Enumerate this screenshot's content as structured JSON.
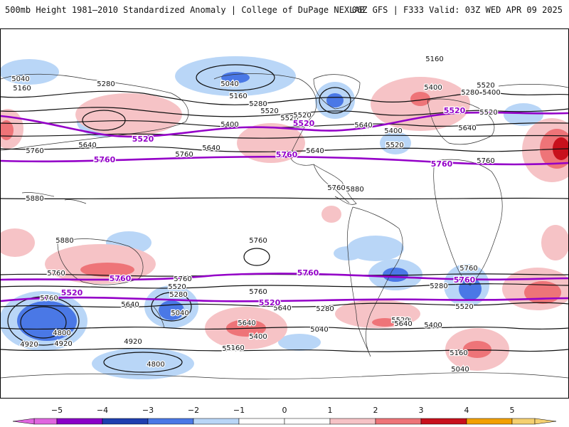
{
  "header": {
    "title_left": "500mb Height 1981–2010 Standardized Anomaly | College of DuPage NEXLAB",
    "title_right": "06Z GFS | F333 Valid: 03Z WED APR 09 2025"
  },
  "colorbar": {
    "ticks": [
      "−5",
      "−4",
      "−3",
      "−2",
      "−1",
      "0",
      "1",
      "2",
      "3",
      "4",
      "5"
    ],
    "bins": [
      {
        "from": -5.5,
        "to": -5,
        "color": "#e066e0"
      },
      {
        "from": -5,
        "to": -4,
        "color": "#8a00c8"
      },
      {
        "from": -4,
        "to": -3,
        "color": "#1f3fb0"
      },
      {
        "from": -3,
        "to": -2,
        "color": "#4a78e6"
      },
      {
        "from": -2,
        "to": -1,
        "color": "#b9d6f7"
      },
      {
        "from": -1,
        "to": 0,
        "color": "#ffffff"
      },
      {
        "from": 0,
        "to": 1,
        "color": "#ffffff"
      },
      {
        "from": 1,
        "to": 2,
        "color": "#f6c3c6"
      },
      {
        "from": 2,
        "to": 3,
        "color": "#ee7478"
      },
      {
        "from": 3,
        "to": 4,
        "color": "#c8101c"
      },
      {
        "from": 4,
        "to": 5,
        "color": "#f2a000"
      },
      {
        "from": 5,
        "to": 5.5,
        "color": "#f5d070"
      }
    ]
  },
  "map": {
    "contour_labels": [
      "5160",
      "5040",
      "5160",
      "5280",
      "5040",
      "5160",
      "5280",
      "5400",
      "5520",
      "5280",
      "5400",
      "5520",
      "5400",
      "5520",
      "5520",
      "5520",
      "5640",
      "5640",
      "5400",
      "5520",
      "5640",
      "5640",
      "5760",
      "5760",
      "5640",
      "5760",
      "5760",
      "5760",
      "5880",
      "5880",
      "5880",
      "5760",
      "5760",
      "5760",
      "5760",
      "5520",
      "5640",
      "5280",
      "5760",
      "5520",
      "5640",
      "5640",
      "5280",
      "5520",
      "5040",
      "5160",
      "5040",
      "5280",
      "5520",
      "5400",
      "5640",
      "5400",
      "5160",
      "5160",
      "4920",
      "4800",
      "4920",
      "4920",
      "4800",
      "5040"
    ],
    "highlight_labels": [
      "5520",
      "5520",
      "5520",
      "5760",
      "5760",
      "5760",
      "5760",
      "5760",
      "5760",
      "5520",
      "5520"
    ]
  },
  "colors": {
    "contour": "#111111",
    "highlight_contour": "#9400c8",
    "coast": "#333333"
  }
}
